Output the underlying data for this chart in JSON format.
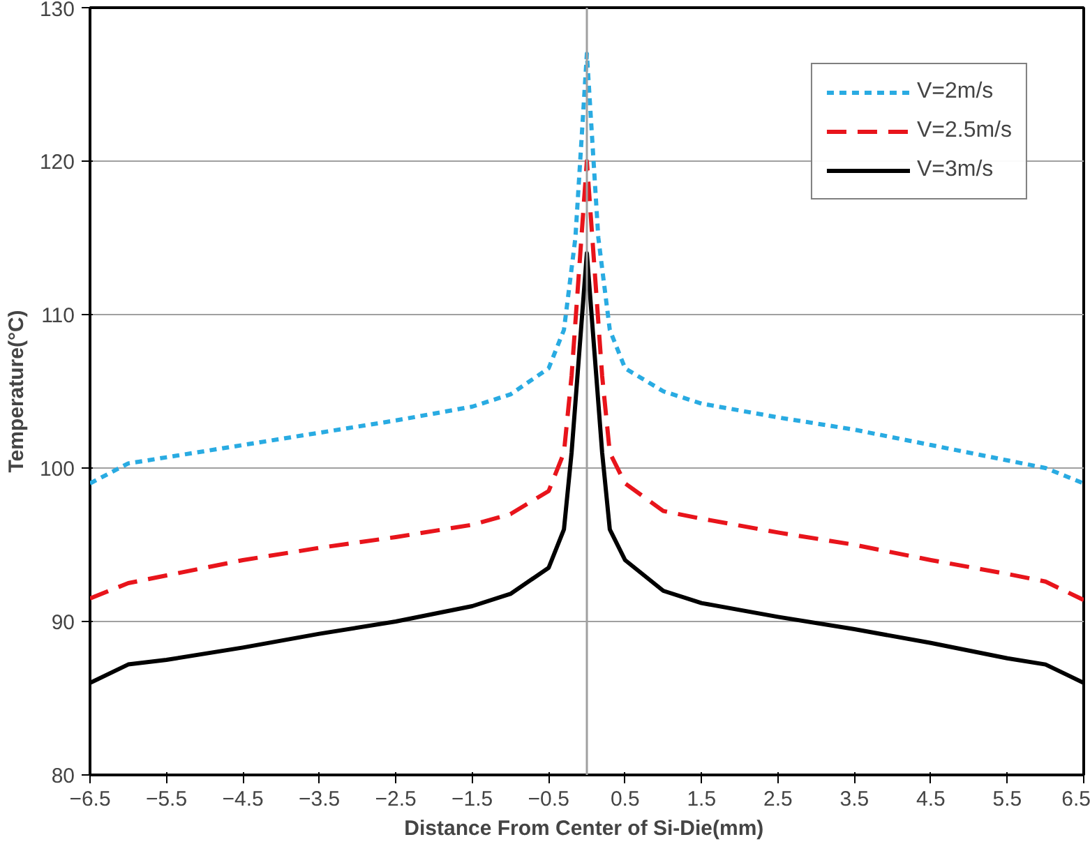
{
  "chart_data": {
    "type": "line",
    "xlabel": "Distance  From Center of Si-Die(mm)",
    "ylabel": "Temperature(°C)",
    "xlim": [
      -6.5,
      6.5
    ],
    "ylim": [
      80,
      130
    ],
    "xticks": [
      -6.5,
      -5.5,
      -4.5,
      -3.5,
      -2.5,
      -1.5,
      -0.5,
      0.5,
      1.5,
      2.5,
      3.5,
      4.5,
      5.5,
      6.5
    ],
    "yticks": [
      80,
      90,
      100,
      110,
      120,
      130
    ],
    "grid": "y",
    "legend": "top right",
    "marker": "none",
    "ref_lines": [
      {
        "axis": "x",
        "value": 0,
        "color": "#a0a0a0",
        "line_style": "solid"
      }
    ],
    "series": [
      {
        "name": "V=2m/s",
        "color": "#29abe2",
        "line_style": "dotted",
        "x": [
          -6.5,
          -6,
          -5.5,
          -4.5,
          -3.5,
          -2.5,
          -1.5,
          -1,
          -0.5,
          -0.3,
          -0.15,
          0,
          0.15,
          0.3,
          0.5,
          1,
          1.5,
          2.5,
          3.5,
          4.5,
          5.5,
          6,
          6.5
        ],
        "values": [
          99,
          100.3,
          100.7,
          101.5,
          102.3,
          103.1,
          104,
          104.8,
          106.5,
          109,
          115,
          127,
          115,
          109,
          106.5,
          105,
          104.2,
          103.3,
          102.5,
          101.5,
          100.5,
          100,
          99
        ]
      },
      {
        "name": "V=2.5m/s",
        "color": "#e8141b",
        "line_style": "dashed",
        "x": [
          -6.5,
          -6,
          -5.5,
          -4.5,
          -3.5,
          -2.5,
          -1.5,
          -1,
          -0.5,
          -0.3,
          -0.2,
          -0.1,
          0,
          0.1,
          0.2,
          0.3,
          0.5,
          1,
          1.5,
          2.5,
          3.5,
          4.5,
          5.5,
          6,
          6.5
        ],
        "values": [
          91.5,
          92.5,
          93,
          94,
          94.8,
          95.5,
          96.3,
          97,
          98.5,
          101,
          106,
          113,
          120,
          113,
          106,
          101,
          99,
          97.2,
          96.7,
          95.8,
          95,
          94,
          93.1,
          92.6,
          91.4
        ]
      },
      {
        "name": "V=3m/s",
        "color": "#000000",
        "line_style": "solid",
        "x": [
          -6.5,
          -6,
          -5.5,
          -4.5,
          -3.5,
          -2.5,
          -1.5,
          -1,
          -0.5,
          -0.3,
          -0.2,
          0,
          0.2,
          0.3,
          0.5,
          1,
          1.5,
          2.5,
          3.5,
          4.5,
          5.5,
          6,
          6.5
        ],
        "values": [
          86,
          87.2,
          87.5,
          88.3,
          89.2,
          90,
          91,
          91.8,
          93.5,
          96,
          101,
          114,
          101,
          96,
          94,
          92,
          91.2,
          90.3,
          89.5,
          88.6,
          87.6,
          87.2,
          86
        ]
      }
    ]
  }
}
